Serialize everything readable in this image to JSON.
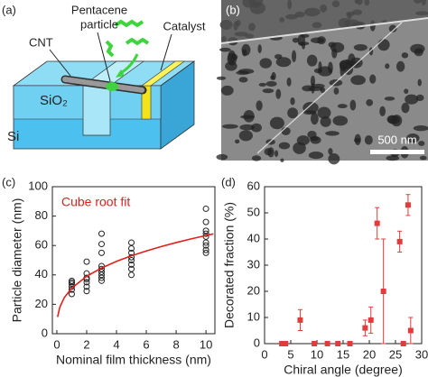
{
  "diagram": {
    "panel_label": "(a)",
    "labels": [
      "CNT",
      "Pentacene",
      "particle",
      "Catalyst",
      "SiO₂",
      "Si"
    ]
  },
  "micrograph": {
    "panel_label": "(b)",
    "scale_bar": "500 nm"
  },
  "chart_data": [
    {
      "type": "scatter",
      "panel_label": "(c)",
      "x_label": "Nominal film thickness (nm)",
      "y_label": "Particle diameter (nm)",
      "xlim": [
        -0.3,
        10.6
      ],
      "xticks": [
        0,
        2,
        4,
        6,
        8,
        10
      ],
      "ylim": [
        0,
        100
      ],
      "yticks": [
        0,
        20,
        40,
        60,
        80,
        100
      ],
      "series": [
        {
          "marker": "circle-open",
          "color": "#222",
          "x": [
            1,
            1,
            1,
            1,
            1,
            1,
            2,
            2,
            2,
            2,
            2,
            2,
            2,
            3,
            3,
            3,
            3,
            3,
            3,
            3,
            3,
            3,
            5,
            5,
            5,
            5,
            5,
            5,
            5,
            5,
            10,
            10,
            10,
            10,
            10,
            10,
            10,
            10,
            10
          ],
          "values": [
            27,
            30,
            32,
            34,
            35,
            36,
            29,
            32,
            35,
            37,
            38,
            41,
            49,
            36,
            38,
            40,
            42,
            44,
            46,
            55,
            61,
            68,
            40,
            44,
            47,
            50,
            52,
            55,
            58,
            62,
            55,
            57,
            60,
            62,
            66,
            68,
            70,
            76,
            85
          ]
        },
        {
          "name": "Cube root fit",
          "mode": "line",
          "color": "#e0201b",
          "x": [
            0.05,
            0.2,
            0.5,
            1,
            2,
            3,
            4,
            5,
            6,
            7,
            8,
            9,
            10,
            10.5
          ],
          "values": [
            11.4,
            18.1,
            24.6,
            31,
            39.1,
            44.7,
            49.2,
            53,
            56.3,
            59.3,
            62,
            64.5,
            66.8,
            67.9
          ]
        }
      ]
    },
    {
      "type": "scatter",
      "panel_label": "(d)",
      "x_label": "Chiral angle (degree)",
      "y_label": "Decorated fraction (%)",
      "xlim": [
        0,
        30
      ],
      "xticks": [
        0,
        5,
        10,
        15,
        20,
        25,
        30
      ],
      "ylim": [
        0,
        60
      ],
      "yticks": [
        0,
        10,
        20,
        30,
        40,
        50,
        60
      ],
      "series": [
        {
          "marker": "square",
          "color": "#e23b3b",
          "x": [
            3.3,
            4.0,
            6.8,
            9.5,
            12.0,
            14.0,
            16.3,
            19.2,
            20.3,
            21.5,
            22.7,
            25.8,
            26.5,
            27.4,
            27.9
          ],
          "values": [
            0,
            0,
            9,
            0,
            0,
            0,
            0,
            6,
            9,
            46,
            20,
            39,
            0,
            53,
            5
          ],
          "errors": [
            0,
            0,
            4,
            0,
            0,
            0,
            0,
            3,
            5,
            6,
            20,
            4,
            0,
            4,
            5
          ]
        }
      ]
    }
  ]
}
